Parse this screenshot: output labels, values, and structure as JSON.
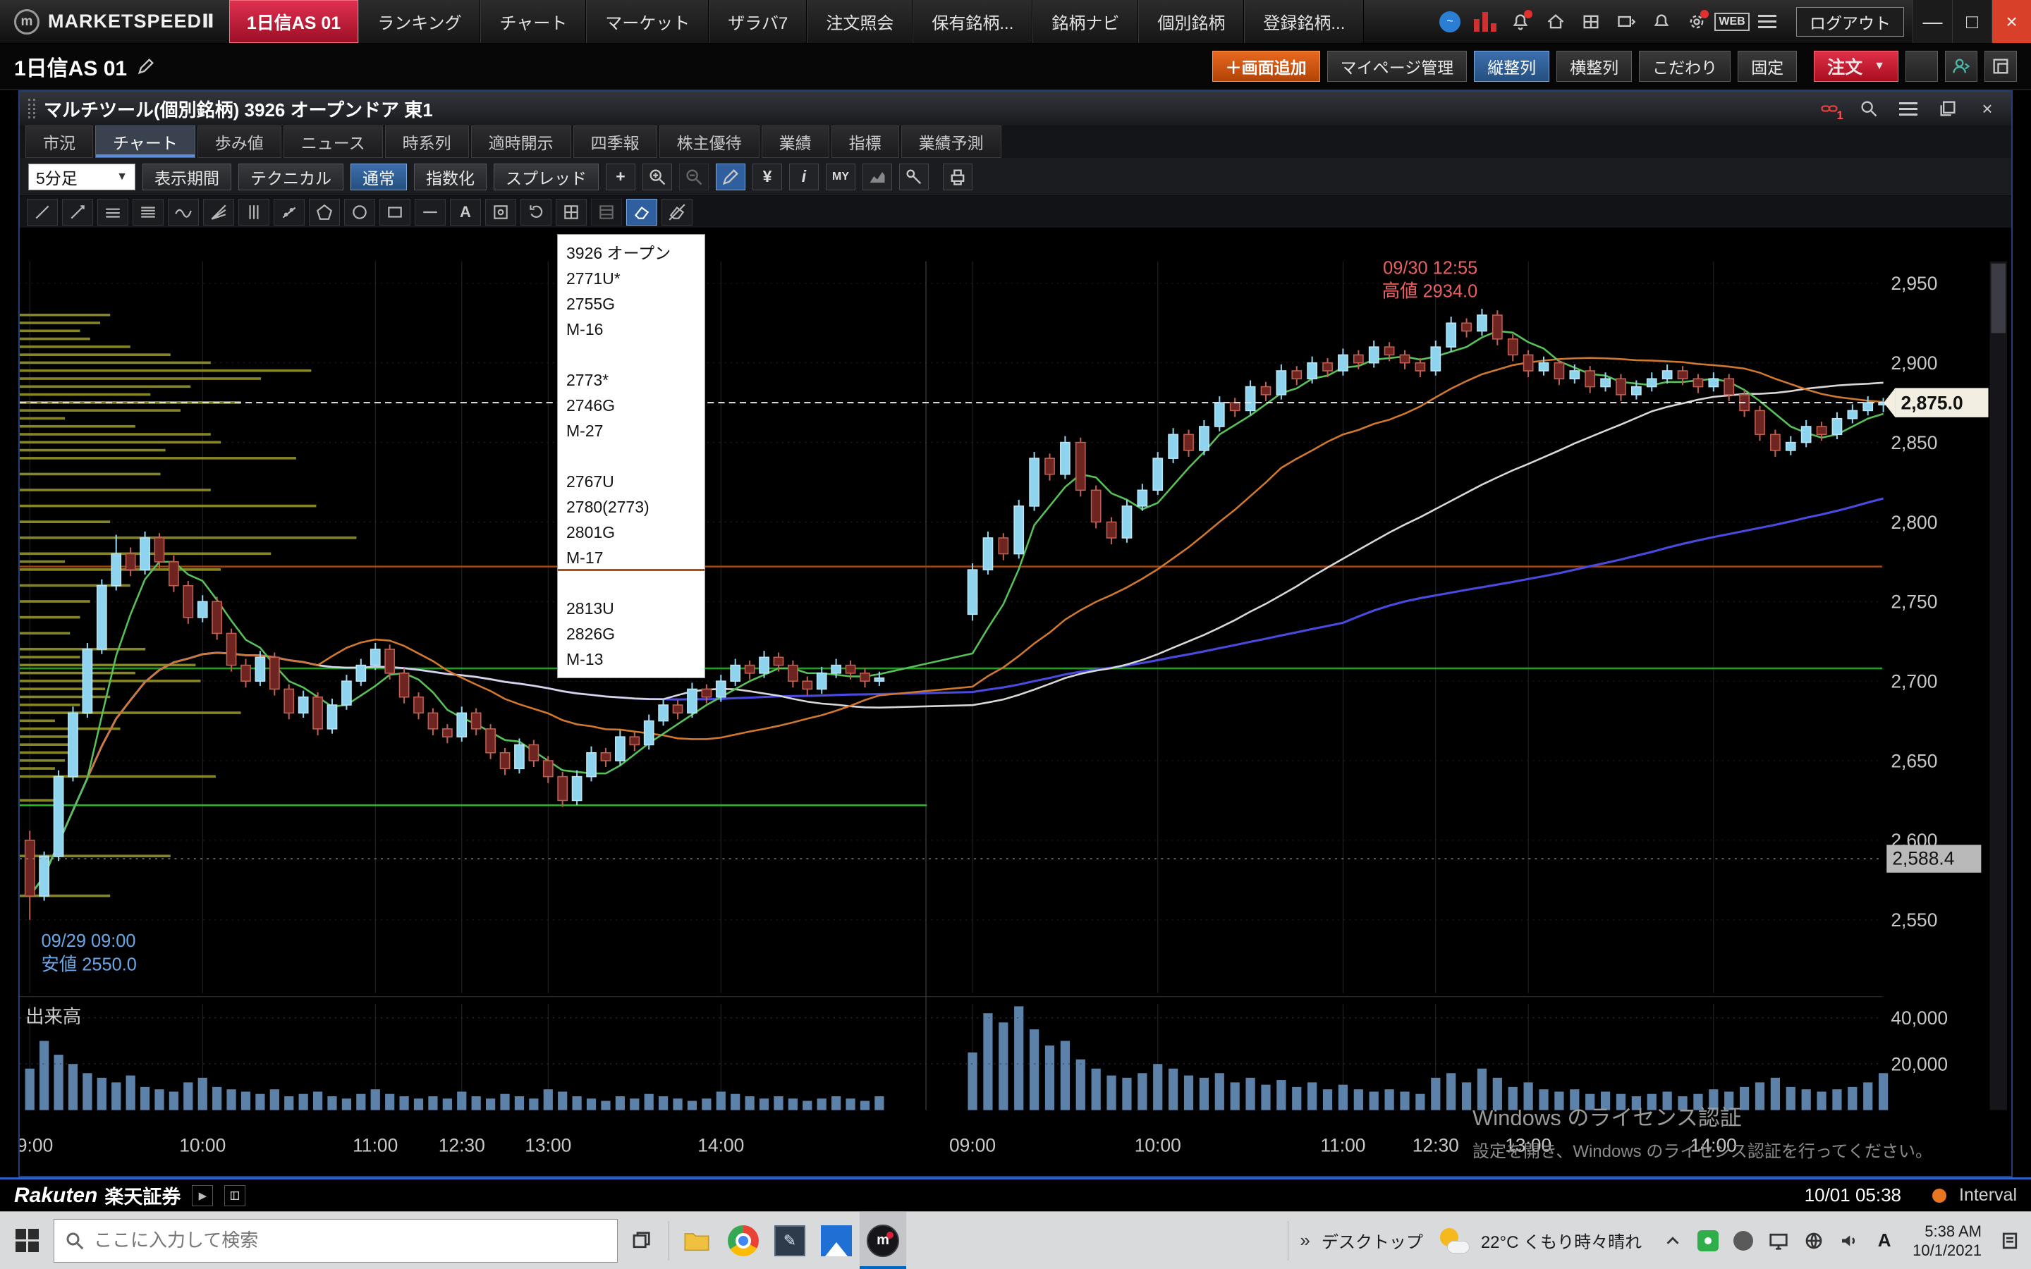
{
  "chrome": {
    "brand": "MARKETSPEEDⅡ",
    "logo_glyph": "m",
    "active_workspace": "1日信AS 01",
    "menu_tabs": [
      "ランキング",
      "チャート",
      "マーケット",
      "ザラバ7",
      "注文照会",
      "保有銘柄...",
      "銘柄ナビ",
      "個別銘柄",
      "登録銘柄..."
    ],
    "web_label": "WEB",
    "logout_label": "ログアウト",
    "window_controls": {
      "minimize": "—",
      "maximize": "□",
      "close": "×"
    }
  },
  "subbar": {
    "workspace_title": "1日信AS 01",
    "add_screen": "＋画面追加",
    "mypage": "マイページ管理",
    "vertical_align": "縦整列",
    "horizontal_align": "横整列",
    "kodawari": "こだわり",
    "fixed": "固定",
    "order": "注文",
    "order_arrow": "▼",
    "help": "?"
  },
  "window": {
    "title": "マルチツール(個別銘柄) 3926 オープンドア 東1",
    "link_badge": "1",
    "close": "×",
    "tabs": [
      "市況",
      "チャート",
      "歩み値",
      "ニュース",
      "時系列",
      "適時開示",
      "四季報",
      "株主優待",
      "業績",
      "指標",
      "業績予測"
    ],
    "toolbar": {
      "timeframe": "5分足",
      "dropdown_arrow": "▼",
      "display_period": "表示期間",
      "technical": "テクニカル",
      "normal": "通常",
      "indexed": "指数化",
      "spread": "スプレッド",
      "plus": "+",
      "yen": "¥",
      "info": "i",
      "my": "MY",
      "text_tool": "A"
    }
  },
  "tooltip": {
    "lines": [
      "3926 オープン",
      "2771U*",
      "2755G",
      "M-16",
      "",
      "2773*",
      "2746G",
      "M-27",
      "",
      "2767U",
      "2780(2773)",
      "2801G",
      "M-17",
      "",
      "2813U",
      "2826G",
      "M-13"
    ]
  },
  "annotations": {
    "high": {
      "time": "09/30 12:55",
      "label": "高値 2934.0"
    },
    "low": {
      "time": "09/29 09:00",
      "label": "安値 2550.0"
    }
  },
  "watermark": {
    "line1": "Windows のライセンス認証",
    "line2": "設定を開き、Windows のライセンス認証を行ってください。"
  },
  "chart_data": {
    "type": "candlestick",
    "symbol": "3926 オープンドア 東1",
    "timeframe": "5分足",
    "ylim": [
      2550,
      2950
    ],
    "y_ticks": [
      {
        "v": 2950,
        "label": "2,950"
      },
      {
        "v": 2900,
        "label": "2,900"
      },
      {
        "v": 2850,
        "label": "2,850"
      },
      {
        "v": 2800,
        "label": "2,800"
      },
      {
        "v": 2750,
        "label": "2,750"
      },
      {
        "v": 2700,
        "label": "2,700"
      },
      {
        "v": 2650,
        "label": "2,650"
      },
      {
        "v": 2600,
        "label": "2,600"
      },
      {
        "v": 2550,
        "label": "2,550"
      }
    ],
    "current_price": "2,875.0",
    "current_price_value": 2875.0,
    "secondary_price": "2,588.4",
    "secondary_price_value": 2588.4,
    "volume_label": "出来高",
    "volume_axis_labels": [
      {
        "value": 40000,
        "label": "40,000"
      },
      {
        "value": 20000,
        "label": "20,000"
      }
    ],
    "volume_max": 46000,
    "x_labels": [
      {
        "i": 0,
        "t": "09:00"
      },
      {
        "i": 12,
        "t": "10:00"
      },
      {
        "i": 24,
        "t": "11:00"
      },
      {
        "i": 30,
        "t": "12:30"
      },
      {
        "i": 36,
        "t": "13:00"
      },
      {
        "i": 48,
        "t": "14:00"
      },
      {
        "i": 60,
        "t": "09:00"
      },
      {
        "i": 72,
        "t": "10:00"
      },
      {
        "i": 84,
        "t": "11:00"
      },
      {
        "i": 90,
        "t": "12:30"
      },
      {
        "i": 96,
        "t": "13:00"
      },
      {
        "i": 108,
        "t": "14:00"
      }
    ],
    "hlines": [
      {
        "price": 2708,
        "color": "#1e9e1e",
        "to": 1
      },
      {
        "price": 2622,
        "color": "#28b828",
        "to": 0.487
      },
      {
        "price": 2772,
        "color": "#a04810",
        "to": 1
      }
    ],
    "high_marker": {
      "price": 2934.0
    },
    "low_marker": {
      "price": 2550.0
    },
    "candles": [
      [
        2600,
        2606,
        2550,
        2565
      ],
      [
        2565,
        2593,
        2562,
        2590
      ],
      [
        2590,
        2644,
        2587,
        2640
      ],
      [
        2640,
        2684,
        2637,
        2680
      ],
      [
        2680,
        2724,
        2677,
        2720
      ],
      [
        2720,
        2764,
        2717,
        2760
      ],
      [
        2760,
        2792,
        2757,
        2780
      ],
      [
        2780,
        2784,
        2766,
        2770
      ],
      [
        2770,
        2794,
        2767,
        2790
      ],
      [
        2790,
        2793,
        2771,
        2775
      ],
      [
        2775,
        2779,
        2756,
        2760
      ],
      [
        2760,
        2763,
        2736,
        2740
      ],
      [
        2740,
        2754,
        2737,
        2750
      ],
      [
        2750,
        2753,
        2726,
        2730
      ],
      [
        2730,
        2733,
        2706,
        2710
      ],
      [
        2710,
        2714,
        2696,
        2700
      ],
      [
        2700,
        2719,
        2697,
        2715
      ],
      [
        2715,
        2718,
        2691,
        2695
      ],
      [
        2695,
        2698,
        2676,
        2680
      ],
      [
        2680,
        2694,
        2677,
        2690
      ],
      [
        2690,
        2693,
        2666,
        2670
      ],
      [
        2670,
        2689,
        2667,
        2685
      ],
      [
        2685,
        2704,
        2682,
        2700
      ],
      [
        2700,
        2714,
        2697,
        2710
      ],
      [
        2710,
        2724,
        2707,
        2720
      ],
      [
        2720,
        2723,
        2701,
        2705
      ],
      [
        2705,
        2708,
        2686,
        2690
      ],
      [
        2690,
        2693,
        2676,
        2680
      ],
      [
        2680,
        2683,
        2666,
        2670
      ],
      [
        2670,
        2673,
        2661,
        2665
      ],
      [
        2665,
        2684,
        2662,
        2680
      ],
      [
        2680,
        2683,
        2666,
        2670
      ],
      [
        2670,
        2673,
        2651,
        2655
      ],
      [
        2655,
        2658,
        2641,
        2645
      ],
      [
        2645,
        2664,
        2642,
        2660
      ],
      [
        2660,
        2663,
        2646,
        2650
      ],
      [
        2650,
        2653,
        2636,
        2640
      ],
      [
        2640,
        2643,
        2621,
        2625
      ],
      [
        2625,
        2644,
        2622,
        2640
      ],
      [
        2640,
        2659,
        2637,
        2655
      ],
      [
        2655,
        2658,
        2646,
        2650
      ],
      [
        2650,
        2669,
        2647,
        2665
      ],
      [
        2665,
        2668,
        2656,
        2660
      ],
      [
        2660,
        2679,
        2657,
        2675
      ],
      [
        2675,
        2689,
        2672,
        2685
      ],
      [
        2685,
        2688,
        2676,
        2680
      ],
      [
        2680,
        2699,
        2677,
        2695
      ],
      [
        2695,
        2698,
        2686,
        2690
      ],
      [
        2690,
        2704,
        2687,
        2700
      ],
      [
        2700,
        2714,
        2697,
        2710
      ],
      [
        2710,
        2713,
        2701,
        2705
      ],
      [
        2705,
        2719,
        2702,
        2715
      ],
      [
        2715,
        2718,
        2706,
        2710
      ],
      [
        2710,
        2713,
        2696,
        2700
      ],
      [
        2700,
        2703,
        2691,
        2695
      ],
      [
        2695,
        2709,
        2692,
        2705
      ],
      [
        2705,
        2714,
        2702,
        2710
      ],
      [
        2710,
        2713,
        2701,
        2705
      ],
      [
        2705,
        2708,
        2696,
        2700
      ],
      [
        2700,
        2706,
        2697,
        2702
      ],
      [
        2742,
        2774,
        2738,
        2770
      ],
      [
        2770,
        2794,
        2767,
        2790
      ],
      [
        2790,
        2793,
        2776,
        2780
      ],
      [
        2780,
        2814,
        2777,
        2810
      ],
      [
        2810,
        2844,
        2807,
        2840
      ],
      [
        2840,
        2843,
        2826,
        2830
      ],
      [
        2830,
        2854,
        2827,
        2850
      ],
      [
        2850,
        2853,
        2816,
        2820
      ],
      [
        2820,
        2823,
        2796,
        2800
      ],
      [
        2800,
        2803,
        2786,
        2790
      ],
      [
        2790,
        2814,
        2787,
        2810
      ],
      [
        2810,
        2824,
        2807,
        2820
      ],
      [
        2820,
        2844,
        2817,
        2840
      ],
      [
        2840,
        2859,
        2837,
        2855
      ],
      [
        2855,
        2858,
        2841,
        2845
      ],
      [
        2845,
        2864,
        2842,
        2860
      ],
      [
        2860,
        2879,
        2857,
        2875
      ],
      [
        2875,
        2878,
        2866,
        2870
      ],
      [
        2870,
        2889,
        2867,
        2885
      ],
      [
        2885,
        2888,
        2876,
        2880
      ],
      [
        2880,
        2899,
        2877,
        2895
      ],
      [
        2895,
        2898,
        2886,
        2890
      ],
      [
        2890,
        2904,
        2887,
        2900
      ],
      [
        2900,
        2903,
        2891,
        2895
      ],
      [
        2895,
        2909,
        2892,
        2905
      ],
      [
        2905,
        2908,
        2896,
        2900
      ],
      [
        2900,
        2914,
        2897,
        2910
      ],
      [
        2910,
        2913,
        2901,
        2905
      ],
      [
        2905,
        2908,
        2896,
        2900
      ],
      [
        2900,
        2903,
        2891,
        2895
      ],
      [
        2895,
        2914,
        2892,
        2910
      ],
      [
        2910,
        2929,
        2907,
        2925
      ],
      [
        2925,
        2928,
        2916,
        2920
      ],
      [
        2920,
        2934,
        2917,
        2930
      ],
      [
        2930,
        2933,
        2911,
        2915
      ],
      [
        2915,
        2918,
        2901,
        2905
      ],
      [
        2905,
        2908,
        2891,
        2895
      ],
      [
        2895,
        2904,
        2892,
        2900
      ],
      [
        2900,
        2903,
        2886,
        2890
      ],
      [
        2890,
        2899,
        2887,
        2895
      ],
      [
        2895,
        2898,
        2881,
        2885
      ],
      [
        2885,
        2894,
        2882,
        2890
      ],
      [
        2890,
        2893,
        2876,
        2880
      ],
      [
        2880,
        2889,
        2877,
        2885
      ],
      [
        2885,
        2894,
        2882,
        2890
      ],
      [
        2890,
        2899,
        2887,
        2895
      ],
      [
        2895,
        2898,
        2886,
        2890
      ],
      [
        2890,
        2893,
        2881,
        2885
      ],
      [
        2885,
        2894,
        2882,
        2890
      ],
      [
        2890,
        2893,
        2876,
        2880
      ],
      [
        2880,
        2883,
        2866,
        2870
      ],
      [
        2870,
        2873,
        2851,
        2855
      ],
      [
        2855,
        2858,
        2841,
        2845
      ],
      [
        2845,
        2854,
        2842,
        2850
      ],
      [
        2850,
        2864,
        2847,
        2860
      ],
      [
        2860,
        2863,
        2851,
        2855
      ],
      [
        2855,
        2869,
        2852,
        2865
      ],
      [
        2865,
        2874,
        2862,
        2870
      ],
      [
        2870,
        2879,
        2867,
        2875
      ],
      [
        2875,
        2878,
        2869,
        2875
      ]
    ],
    "volumes": [
      18000,
      30000,
      24000,
      20000,
      16000,
      14000,
      12000,
      15000,
      10000,
      9000,
      8000,
      12000,
      14000,
      10000,
      9000,
      8000,
      7000,
      9000,
      6000,
      7000,
      8000,
      6000,
      5000,
      7000,
      9000,
      7000,
      6000,
      5000,
      6000,
      5000,
      8000,
      6000,
      5000,
      7000,
      6000,
      5000,
      9000,
      8000,
      6000,
      5000,
      4000,
      6000,
      5000,
      7000,
      6000,
      5000,
      4000,
      5000,
      8000,
      7000,
      6000,
      5000,
      6000,
      5000,
      4000,
      5000,
      6000,
      5000,
      4000,
      6000,
      25000,
      42000,
      38000,
      45000,
      35000,
      28000,
      30000,
      22000,
      18000,
      15000,
      14000,
      16000,
      20000,
      18000,
      15000,
      14000,
      16000,
      12000,
      14000,
      11000,
      13000,
      10000,
      12000,
      9000,
      11000,
      9000,
      8000,
      9000,
      8000,
      7000,
      14000,
      16000,
      12000,
      18000,
      14000,
      10000,
      12000,
      9000,
      8000,
      9000,
      7000,
      8000,
      7000,
      6000,
      7000,
      8000,
      6000,
      7000,
      9000,
      8000,
      10000,
      12000,
      14000,
      10000,
      9000,
      8000,
      9000,
      10000,
      12000,
      16000
    ]
  },
  "statusbar": {
    "brand_en": "Rakuten",
    "brand_jp": "楽天証券",
    "datetime": "10/01 05:38",
    "interval_label": "Interval"
  },
  "taskbar": {
    "search_placeholder": "ここに入力して検索",
    "desktop_label": "デスクトップ",
    "chevrons": "»",
    "weather": "22°C くもり時々晴れ",
    "ime": "A",
    "clock_time": "5:38 AM",
    "clock_date": "10/1/2021"
  }
}
